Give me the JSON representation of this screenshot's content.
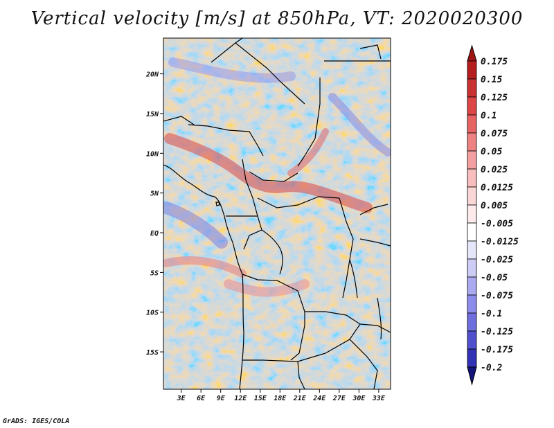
{
  "title": "Vertical velocity [m/s] at 850hPa, VT: 2020020300",
  "credit": "GrADS: IGES/COLA",
  "lat_ticks": [
    {
      "value": 20,
      "label": "20N"
    },
    {
      "value": 15,
      "label": "15N"
    },
    {
      "value": 10,
      "label": "10N"
    },
    {
      "value": 5,
      "label": "5N"
    },
    {
      "value": 0,
      "label": "EQ"
    },
    {
      "value": -5,
      "label": "5S"
    },
    {
      "value": -10,
      "label": "10S"
    },
    {
      "value": -15,
      "label": "15S"
    }
  ],
  "lon_ticks": [
    {
      "value": 3,
      "label": "3E"
    },
    {
      "value": 6,
      "label": "6E"
    },
    {
      "value": 9,
      "label": "9E"
    },
    {
      "value": 12,
      "label": "12E"
    },
    {
      "value": 15,
      "label": "15E"
    },
    {
      "value": 18,
      "label": "18E"
    },
    {
      "value": 21,
      "label": "21E"
    },
    {
      "value": 24,
      "label": "24E"
    },
    {
      "value": 27,
      "label": "27E"
    },
    {
      "value": 30,
      "label": "30E"
    },
    {
      "value": 33,
      "label": "33E"
    }
  ],
  "domain": {
    "lon_min": 0.3,
    "lon_max": 34.8,
    "lat_min": -19.7,
    "lat_max": 24.5
  },
  "colorbar": [
    {
      "label": "0.175",
      "color": "#b41e1e"
    },
    {
      "label": "0.15",
      "color": "#c83232"
    },
    {
      "label": "0.125",
      "color": "#dc4646"
    },
    {
      "label": "0.1",
      "color": "#e66464"
    },
    {
      "label": "0.075",
      "color": "#ee8282"
    },
    {
      "label": "0.05",
      "color": "#f4a0a0"
    },
    {
      "label": "0.025",
      "color": "#f8bebe"
    },
    {
      "label": "0.0125",
      "color": "#fad7d7"
    },
    {
      "label": "0.005",
      "color": "#fdebeb"
    },
    {
      "label": "-0.005",
      "color": "#ffffff"
    },
    {
      "label": "-0.0125",
      "color": "#e6e6fa"
    },
    {
      "label": "-0.025",
      "color": "#ccccf5"
    },
    {
      "label": "-0.05",
      "color": "#aaaaf0"
    },
    {
      "label": "-0.075",
      "color": "#8c8ceb"
    },
    {
      "label": "-0.1",
      "color": "#6e6edc"
    },
    {
      "label": "-0.125",
      "color": "#5050cd"
    },
    {
      "label": "-0.175",
      "color": "#3232b4"
    },
    {
      "label": "-0.2",
      "color": "#1e1e9b"
    }
  ],
  "colors": {
    "top_arrow": "#a01414",
    "bottom_arrow": "#14147d",
    "background": "#ffffff",
    "border": "#000000"
  }
}
